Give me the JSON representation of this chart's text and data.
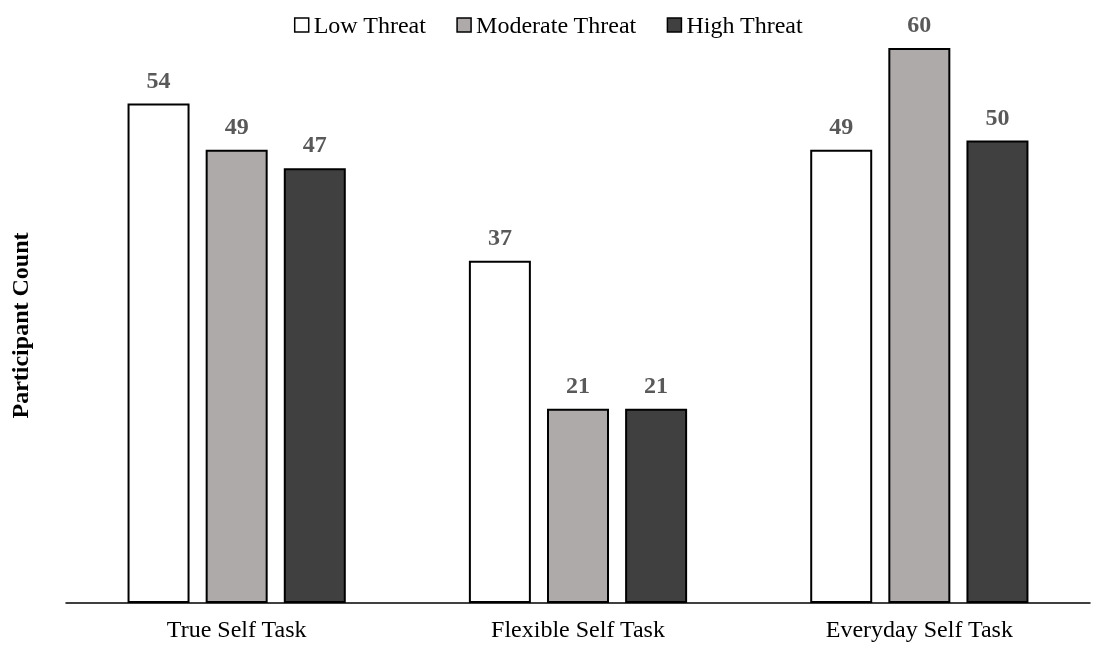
{
  "chart_data": {
    "type": "bar",
    "ylabel": "Participant Count",
    "categories": [
      "True Self Task",
      "Flexible Self Task",
      "Everyday Self Task"
    ],
    "series": [
      {
        "name": "Low Threat",
        "color": "#ffffff",
        "values": [
          54,
          37,
          49
        ]
      },
      {
        "name": "Moderate Threat",
        "color": "#aeaaaa",
        "values": [
          49,
          21,
          60
        ]
      },
      {
        "name": "High Threat",
        "color": "#404040",
        "values": [
          47,
          21,
          50
        ]
      }
    ],
    "tick_labels": "x",
    "grid": false,
    "legend": "top",
    "data_labels": true
  }
}
